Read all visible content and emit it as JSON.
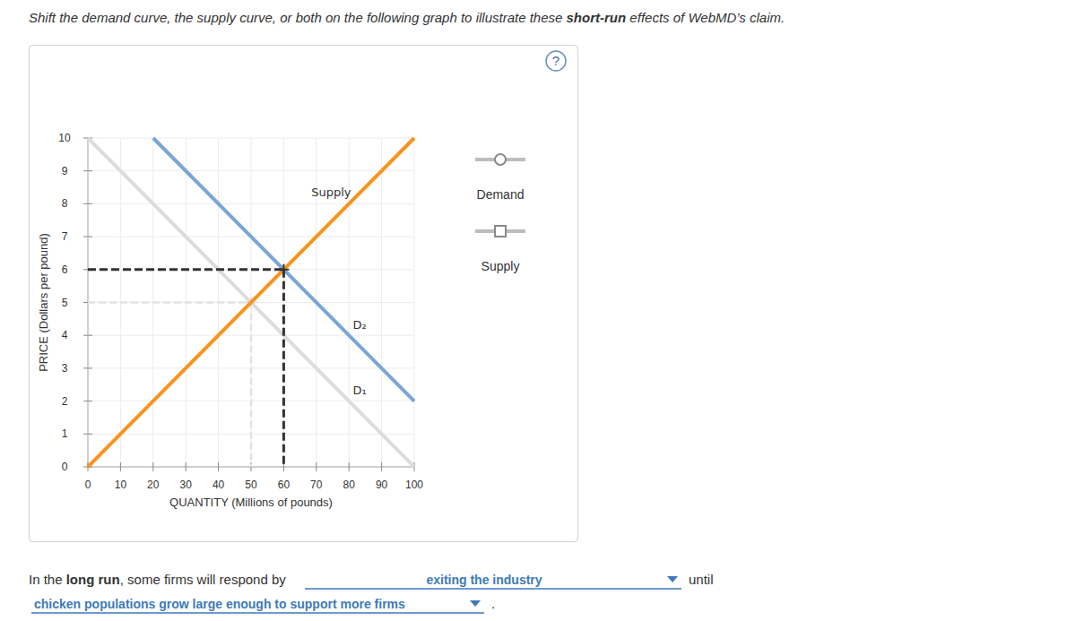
{
  "instruction": [
    {
      "text": "Shift the demand curve, the supply curve, or both on the following graph to illustrate these ",
      "bold": false
    },
    {
      "text": "short-run",
      "bold": true
    },
    {
      "text": " effects of WebMD’s claim.",
      "bold": false
    }
  ],
  "help": "?",
  "chart_data": {
    "type": "line",
    "x_label": "QUANTITY (Millions of pounds)",
    "y_label": "PRICE (Dollars per pound)",
    "xlim": [
      0,
      100
    ],
    "ylim": [
      0,
      10
    ],
    "xticks": [
      0,
      10,
      20,
      30,
      40,
      50,
      60,
      70,
      80,
      90,
      100
    ],
    "yticks": [
      0,
      1,
      2,
      3,
      4,
      5,
      6,
      7,
      8,
      9,
      10
    ],
    "grid": true,
    "series": [
      {
        "name": "D₁",
        "color": "#dcdcdc",
        "x": [
          0,
          100
        ],
        "values": [
          10,
          0
        ]
      },
      {
        "name": "D₂",
        "color": "#7aa6d6",
        "x": [
          20,
          100
        ],
        "values": [
          10,
          2
        ]
      },
      {
        "name": "Supply",
        "color": "#f7941d",
        "x": [
          0,
          100
        ],
        "values": [
          0,
          10
        ]
      }
    ],
    "equilibria": [
      {
        "x": 50,
        "y": 5,
        "color": "#e2e2e2"
      },
      {
        "x": 60,
        "y": 6,
        "color": "#333333"
      }
    ]
  },
  "palette": [
    {
      "label": "Demand",
      "marker": "circle"
    },
    {
      "label": "Supply",
      "marker": "square"
    }
  ],
  "long_run": {
    "parts": [
      {
        "text": "In the ",
        "bold": false
      },
      {
        "text": "long run",
        "bold": true
      },
      {
        "text": ", some firms will respond by",
        "bold": false
      }
    ],
    "choice_1": "exiting the industry",
    "middle": "until",
    "choice_2": "chicken populations grow large enough to support more firms",
    "end": "."
  }
}
